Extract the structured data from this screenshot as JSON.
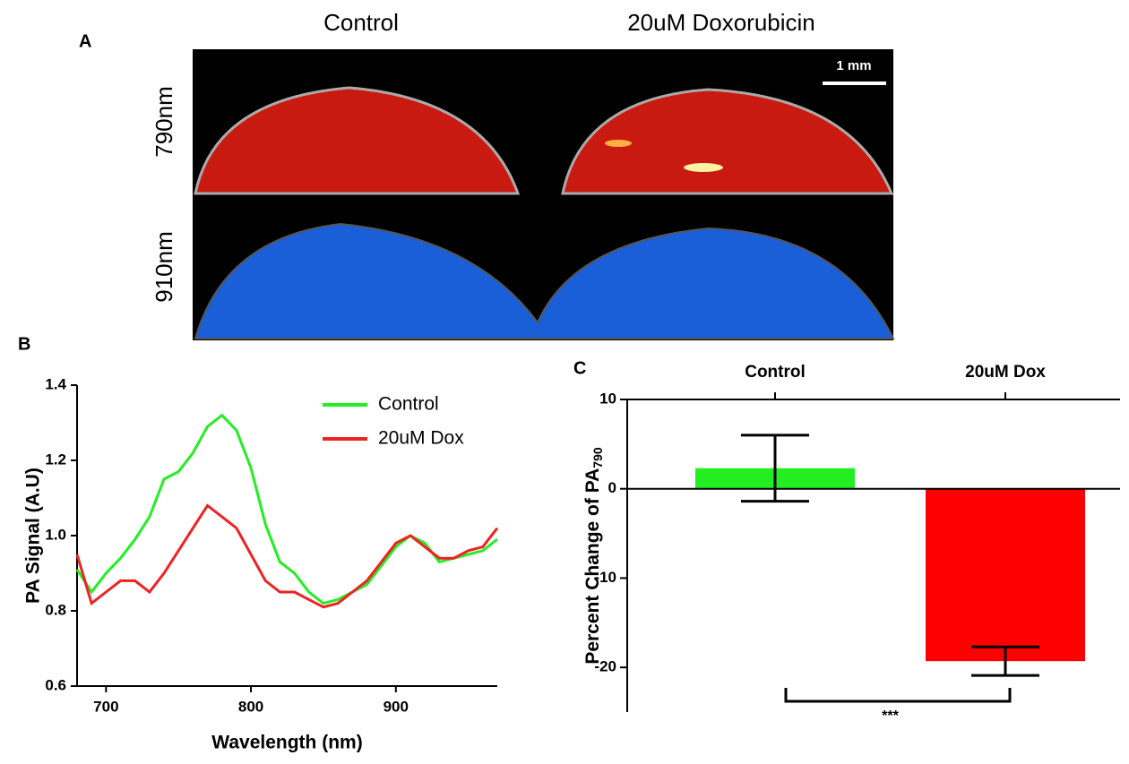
{
  "figure": {
    "panel_labels": [
      "A",
      "B",
      "C"
    ],
    "image_panel": {
      "column_labels": [
        "Control",
        "20uM Doxorubicin"
      ],
      "row_labels": [
        "790nm",
        "910nm"
      ],
      "scale_bar": "1 mm"
    }
  },
  "chart_data": [
    {
      "type": "line",
      "xlabel": "Wavelength (nm)",
      "ylabel": "PA Signal  (A.U)",
      "x": [
        680,
        690,
        700,
        710,
        720,
        730,
        740,
        750,
        760,
        770,
        780,
        790,
        800,
        810,
        820,
        830,
        840,
        850,
        860,
        870,
        880,
        890,
        900,
        910,
        920,
        930,
        940,
        950,
        960,
        970
      ],
      "series": [
        {
          "name": "Control",
          "color": "#22ee22",
          "values": [
            0.91,
            0.85,
            0.9,
            0.94,
            0.99,
            1.05,
            1.15,
            1.17,
            1.22,
            1.29,
            1.32,
            1.28,
            1.18,
            1.03,
            0.93,
            0.9,
            0.85,
            0.82,
            0.83,
            0.85,
            0.87,
            0.92,
            0.97,
            1.0,
            0.98,
            0.93,
            0.94,
            0.95,
            0.96,
            0.99
          ]
        },
        {
          "name": "20uM Dox",
          "color": "#ee2222",
          "values": [
            0.95,
            0.82,
            0.85,
            0.88,
            0.88,
            0.85,
            0.9,
            0.96,
            1.02,
            1.08,
            1.05,
            1.02,
            0.95,
            0.88,
            0.85,
            0.85,
            0.83,
            0.81,
            0.82,
            0.85,
            0.88,
            0.93,
            0.98,
            1.0,
            0.97,
            0.94,
            0.94,
            0.96,
            0.97,
            1.02
          ]
        }
      ],
      "xlim": [
        680,
        970
      ],
      "xticks": [
        700,
        800,
        900
      ],
      "ylim": [
        0.6,
        1.4
      ],
      "yticks": [
        0.6,
        0.8,
        {
          "value": 1,
          "label": "1.0"
        },
        1.2,
        1.4
      ],
      "legend": "top-right"
    },
    {
      "type": "bar",
      "ylabel": "Percent Change of PA",
      "ylabel_subscript": "790",
      "categories": [
        "Control",
        "20uM Dox"
      ],
      "values": [
        2.3,
        -19.3
      ],
      "errors": [
        3.7,
        1.6
      ],
      "colors": [
        "#22ee22",
        "#ff0000"
      ],
      "ylim": [
        -25,
        10
      ],
      "yticks": [
        -20,
        -10,
        0,
        10
      ],
      "annotation": "***"
    }
  ]
}
